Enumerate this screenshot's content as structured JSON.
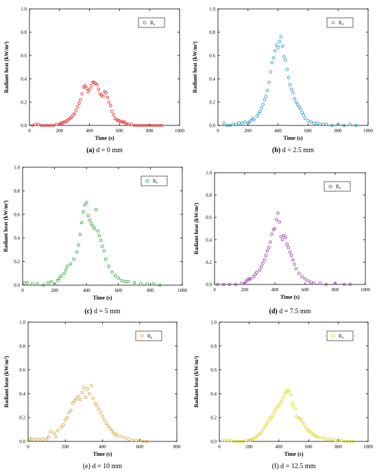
{
  "chart_data": [
    {
      "type": "scatter",
      "panel_id": "a",
      "caption": "(a) d = 0 mm",
      "caption_bold": "(a)",
      "caption_rest": " d = 0 mm",
      "xlabel": "Time (s)",
      "ylabel": "Radiant heat (kW/m²)",
      "xlim": [
        0,
        1000
      ],
      "ylim": [
        0,
        1.0
      ],
      "xticks": [
        0,
        200,
        400,
        600,
        800,
        1000
      ],
      "yticks": [
        0.0,
        0.2,
        0.4,
        0.6,
        0.8,
        1.0
      ],
      "legend_position": "top-right",
      "series": [
        {
          "name": "R₀",
          "color": "#e8202a",
          "marker": "open-circle",
          "x": [
            20,
            40,
            60,
            80,
            100,
            120,
            140,
            160,
            180,
            200,
            210,
            220,
            230,
            240,
            250,
            260,
            270,
            280,
            290,
            300,
            310,
            320,
            330,
            340,
            350,
            360,
            370,
            380,
            390,
            400,
            410,
            420,
            430,
            440,
            450,
            460,
            470,
            480,
            490,
            500,
            510,
            520,
            530,
            540,
            550,
            560,
            570,
            580,
            590,
            600,
            610,
            620,
            630,
            640,
            650,
            660,
            680,
            700,
            720,
            740,
            760,
            780,
            800,
            820,
            840,
            860,
            880
          ],
          "y": [
            0.0,
            0.01,
            0.01,
            0.0,
            0.0,
            0.0,
            0.0,
            0.0,
            0.01,
            0.01,
            0.02,
            0.02,
            0.03,
            0.03,
            0.04,
            0.05,
            0.06,
            0.07,
            0.09,
            0.1,
            0.13,
            0.16,
            0.19,
            0.22,
            0.27,
            0.33,
            0.34,
            0.32,
            0.29,
            0.31,
            0.34,
            0.37,
            0.37,
            0.36,
            0.35,
            0.31,
            0.27,
            0.26,
            0.25,
            0.29,
            0.28,
            0.24,
            0.2,
            0.17,
            0.12,
            0.09,
            0.06,
            0.05,
            0.04,
            0.04,
            0.03,
            0.03,
            0.03,
            0.02,
            0.01,
            0.01,
            0.01,
            0.0,
            0.0,
            0.0,
            0.0,
            0.0,
            0.0,
            0.0,
            0.0,
            0.0,
            0.0
          ]
        }
      ]
    },
    {
      "type": "scatter",
      "panel_id": "b",
      "caption": "(b) d = 2.5 mm",
      "caption_bold": "(b)",
      "caption_rest": " d = 2.5 mm",
      "xlabel": "Time (s)",
      "ylabel": "Radiant heat (kW/m²)",
      "xlim": [
        0,
        1000
      ],
      "ylim": [
        0,
        1.0
      ],
      "xticks": [
        0,
        200,
        400,
        600,
        800,
        1000
      ],
      "yticks": [
        0.0,
        0.2,
        0.4,
        0.6,
        0.8,
        1.0
      ],
      "legend_position": "top-right",
      "series": [
        {
          "name": "R₀",
          "color": "#1a8fc4",
          "marker": "open-circle",
          "x": [
            40,
            60,
            80,
            100,
            120,
            140,
            160,
            180,
            200,
            210,
            220,
            230,
            240,
            260,
            270,
            280,
            290,
            300,
            310,
            320,
            330,
            340,
            350,
            360,
            370,
            380,
            390,
            400,
            410,
            420,
            430,
            440,
            450,
            460,
            470,
            480,
            490,
            500,
            510,
            520,
            530,
            540,
            550,
            560,
            570,
            580,
            600,
            620,
            640,
            660,
            680,
            700,
            720,
            760,
            800,
            840,
            880,
            920
          ],
          "y": [
            0.02,
            0.0,
            0.0,
            0.01,
            0.01,
            0.02,
            0.02,
            0.03,
            0.02,
            0.03,
            0.04,
            0.06,
            0.05,
            0.08,
            0.1,
            0.12,
            0.15,
            0.18,
            0.22,
            0.25,
            0.3,
            0.37,
            0.46,
            0.54,
            0.58,
            0.64,
            0.69,
            0.67,
            0.72,
            0.76,
            0.68,
            0.59,
            0.56,
            0.48,
            0.41,
            0.35,
            0.31,
            0.28,
            0.23,
            0.2,
            0.18,
            0.16,
            0.14,
            0.11,
            0.09,
            0.06,
            0.04,
            0.03,
            0.02,
            0.02,
            0.01,
            0.01,
            0.01,
            0.0,
            0.01,
            0.0,
            0.01,
            0.0
          ]
        }
      ]
    },
    {
      "type": "scatter",
      "panel_id": "c",
      "caption": "(c) d = 5 mm",
      "caption_bold": "(c)",
      "caption_rest": " d = 5 mm",
      "xlabel": "Time (s)",
      "ylabel": "Radiant heat (kW/m²)",
      "xlim": [
        0,
        1000
      ],
      "ylim": [
        0,
        1.0
      ],
      "xticks": [
        0,
        200,
        400,
        600,
        800,
        1000
      ],
      "yticks": [
        0.0,
        0.2,
        0.4,
        0.6,
        0.8,
        1.0
      ],
      "legend_position": "top-right",
      "series": [
        {
          "name": "R₀",
          "color": "#1f9a2a",
          "marker": "open-circle",
          "x": [
            10,
            30,
            60,
            90,
            130,
            160,
            180,
            200,
            220,
            230,
            240,
            260,
            270,
            280,
            300,
            320,
            340,
            350,
            360,
            370,
            380,
            390,
            400,
            410,
            420,
            430,
            440,
            450,
            460,
            470,
            480,
            490,
            500,
            510,
            520,
            540,
            560,
            580,
            600,
            620,
            640,
            660,
            700,
            740,
            780,
            820,
            860
          ],
          "y": [
            0.02,
            0.02,
            0.01,
            0.01,
            0.0,
            0.02,
            0.03,
            0.01,
            0.04,
            0.06,
            0.08,
            0.1,
            0.13,
            0.16,
            0.18,
            0.22,
            0.28,
            0.34,
            0.43,
            0.53,
            0.62,
            0.68,
            0.7,
            0.59,
            0.55,
            0.52,
            0.5,
            0.48,
            0.64,
            0.46,
            0.42,
            0.38,
            0.33,
            0.29,
            0.22,
            0.16,
            0.11,
            0.08,
            0.06,
            0.04,
            0.03,
            0.03,
            0.02,
            0.01,
            0.01,
            0.01,
            0.0
          ]
        }
      ]
    },
    {
      "type": "scatter",
      "panel_id": "d",
      "caption": "(d) d = 7.5 mm",
      "caption_bold": "(d)",
      "caption_rest": " d = 7.5 mm",
      "xlabel": "Time (s)",
      "ylabel": "Radiant heat (kW/m²)",
      "xlim": [
        0,
        1000
      ],
      "ylim": [
        0,
        1.0
      ],
      "xticks": [
        0,
        200,
        400,
        600,
        800,
        1000
      ],
      "yticks": [
        0.0,
        0.2,
        0.4,
        0.6,
        0.8,
        1.0
      ],
      "legend_position": "top-right",
      "series": [
        {
          "name": "R₀",
          "color": "#8e2f99",
          "marker": "open-circle",
          "x": [
            20,
            60,
            100,
            140,
            180,
            200,
            210,
            220,
            230,
            240,
            260,
            270,
            280,
            300,
            310,
            320,
            330,
            340,
            350,
            360,
            370,
            380,
            390,
            400,
            410,
            420,
            430,
            440,
            450,
            460,
            470,
            480,
            490,
            500,
            510,
            520,
            530,
            540,
            560,
            580,
            600,
            620,
            640,
            660,
            700,
            740,
            800,
            860,
            900
          ],
          "y": [
            0.0,
            0.0,
            0.0,
            0.0,
            0.01,
            0.01,
            0.03,
            0.04,
            0.05,
            0.05,
            0.07,
            0.09,
            0.11,
            0.13,
            0.16,
            0.19,
            0.22,
            0.26,
            0.3,
            0.33,
            0.38,
            0.45,
            0.49,
            0.5,
            0.58,
            0.64,
            0.56,
            0.43,
            0.4,
            0.44,
            0.42,
            0.36,
            0.33,
            0.29,
            0.26,
            0.22,
            0.18,
            0.14,
            0.1,
            0.07,
            0.05,
            0.03,
            0.02,
            0.01,
            0.01,
            0.0,
            0.01,
            0.0,
            0.0
          ]
        }
      ]
    },
    {
      "type": "scatter",
      "panel_id": "e",
      "caption": "(e) d = 10 mm",
      "caption_bold": "",
      "caption_rest": "(e) d = 10 mm",
      "xlabel": "Time (s)",
      "ylabel": "Radiant heat (kW/m²)",
      "xlim": [
        0,
        800
      ],
      "ylim": [
        0,
        1.0
      ],
      "xticks": [
        0,
        200,
        400,
        600,
        800
      ],
      "yticks": [
        0.0,
        0.2,
        0.4,
        0.6,
        0.8,
        1.0
      ],
      "legend_position": "top-right",
      "series": [
        {
          "name": "R₀",
          "color": "#d99a2b",
          "marker": "open-circle",
          "x": [
            10,
            20,
            40,
            60,
            80,
            100,
            110,
            120,
            140,
            150,
            160,
            180,
            190,
            200,
            210,
            220,
            230,
            240,
            250,
            260,
            270,
            280,
            290,
            300,
            310,
            320,
            330,
            340,
            350,
            360,
            370,
            380,
            390,
            400,
            410,
            420,
            430,
            440,
            450,
            460,
            470,
            480,
            500,
            520,
            540,
            560,
            580,
            600,
            620,
            640
          ],
          "y": [
            0.02,
            0.02,
            0.02,
            0.02,
            0.02,
            0.02,
            0.04,
            0.08,
            0.07,
            0.04,
            0.09,
            0.12,
            0.14,
            0.18,
            0.2,
            0.24,
            0.26,
            0.32,
            0.34,
            0.36,
            0.38,
            0.35,
            0.41,
            0.45,
            0.37,
            0.44,
            0.4,
            0.47,
            0.36,
            0.32,
            0.3,
            0.27,
            0.24,
            0.21,
            0.18,
            0.15,
            0.13,
            0.11,
            0.09,
            0.07,
            0.06,
            0.05,
            0.04,
            0.03,
            0.02,
            0.01,
            0.01,
            0.01,
            0.0,
            0.0
          ]
        }
      ]
    },
    {
      "type": "scatter",
      "panel_id": "f",
      "caption": "(f) d = 12.5 mm",
      "caption_bold": "",
      "caption_rest": "(f) d = 12.5 mm",
      "xlabel": "Time (s)",
      "ylabel": "Radiant heat (kW/m²)",
      "xlim": [
        0,
        1000
      ],
      "ylim": [
        0,
        1.0
      ],
      "xticks": [
        0,
        200,
        400,
        600,
        800,
        1000
      ],
      "yticks": [
        0.0,
        0.2,
        0.4,
        0.6,
        0.8,
        1.0
      ],
      "legend_position": "top-right",
      "series": [
        {
          "name": "R₀",
          "color": "#dada1e",
          "marker": "open-circle",
          "x": [
            20,
            40,
            60,
            80,
            100,
            120,
            140,
            160,
            180,
            200,
            210,
            220,
            230,
            240,
            250,
            260,
            270,
            280,
            290,
            300,
            310,
            320,
            330,
            340,
            350,
            360,
            370,
            380,
            390,
            400,
            410,
            420,
            430,
            440,
            450,
            460,
            470,
            480,
            490,
            500,
            510,
            520,
            530,
            540,
            550,
            560,
            570,
            580,
            590,
            600,
            610,
            620,
            630,
            640,
            650,
            660,
            680,
            700,
            720,
            740,
            760,
            780,
            800,
            820,
            840,
            860,
            880,
            900
          ],
          "y": [
            0.01,
            0.01,
            0.01,
            0.01,
            0.0,
            0.0,
            0.0,
            0.0,
            0.01,
            0.01,
            0.01,
            0.02,
            0.02,
            0.03,
            0.04,
            0.05,
            0.06,
            0.07,
            0.09,
            0.11,
            0.13,
            0.15,
            0.17,
            0.19,
            0.2,
            0.22,
            0.25,
            0.27,
            0.29,
            0.3,
            0.32,
            0.34,
            0.37,
            0.4,
            0.42,
            0.43,
            0.42,
            0.39,
            0.32,
            0.3,
            0.27,
            0.21,
            0.2,
            0.19,
            0.18,
            0.16,
            0.14,
            0.12,
            0.1,
            0.09,
            0.08,
            0.07,
            0.06,
            0.05,
            0.04,
            0.04,
            0.03,
            0.03,
            0.02,
            0.02,
            0.02,
            0.01,
            0.01,
            0.01,
            0.0,
            0.0,
            0.0,
            0.0
          ]
        }
      ]
    }
  ]
}
